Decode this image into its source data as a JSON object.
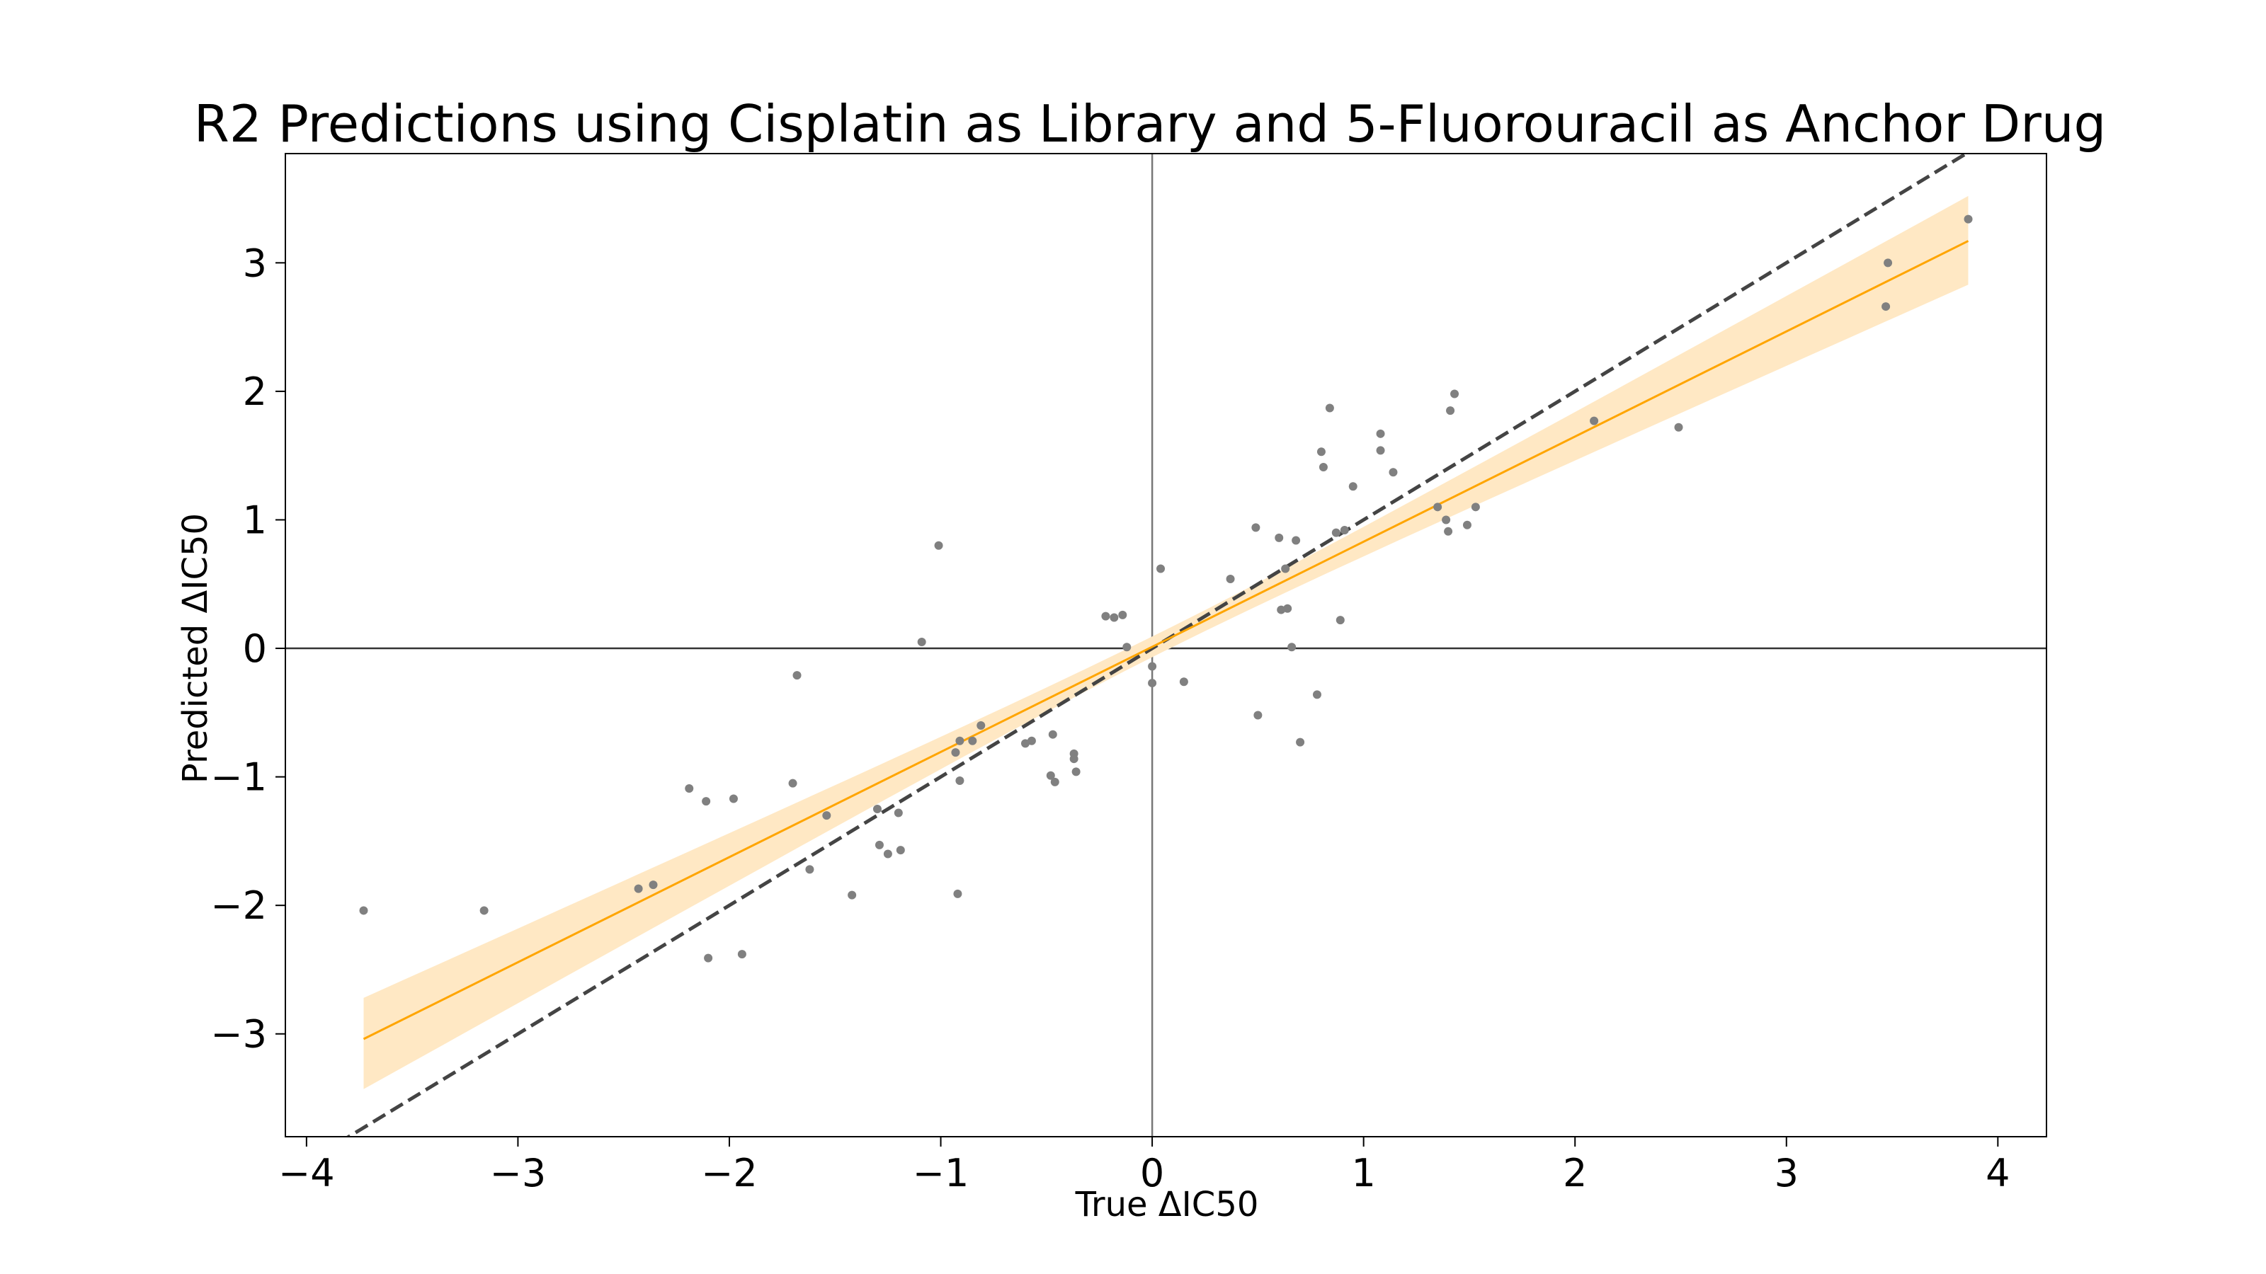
{
  "chart_data": {
    "type": "scatter",
    "title": "R2 Predictions using Cisplatin as Library and 5-Fluorouracil as Anchor Drug",
    "xlabel": "True ΔIC50",
    "ylabel": "Predicted ΔIC50",
    "xlim": [
      -4.1,
      4.23
    ],
    "ylim": [
      -3.8,
      3.85
    ],
    "xticks": [
      -4,
      -3,
      -2,
      -1,
      0,
      1,
      2,
      3,
      4
    ],
    "yticks": [
      -3,
      -2,
      -1,
      0,
      1,
      2,
      3
    ],
    "xtick_labels": [
      "−4",
      "−3",
      "−2",
      "−1",
      "0",
      "1",
      "2",
      "3",
      "4"
    ],
    "ytick_labels": [
      "−3",
      "−2",
      "−1",
      "0",
      "1",
      "2",
      "3"
    ],
    "grid": false,
    "reference_lines": {
      "horizontal_at": 0,
      "vertical_at": 0,
      "identity_dashed": true
    },
    "regression": {
      "x_range": [
        -3.73,
        3.86
      ],
      "y_at_ends": [
        -3.04,
        3.17
      ],
      "ci_lower_at_ends": [
        -3.43,
        2.83
      ],
      "ci_upper_at_ends": [
        -2.72,
        3.52
      ],
      "ci_near_center": 0.08,
      "color": "#ffa500",
      "ci_color": "#ffe8c4"
    },
    "colors": {
      "points": "#808080",
      "identity": "#444444",
      "zero_lines": "#000000"
    },
    "points": [
      {
        "x": -3.73,
        "y": -2.04
      },
      {
        "x": -3.16,
        "y": -2.04
      },
      {
        "x": -2.43,
        "y": -1.87
      },
      {
        "x": -2.36,
        "y": -1.84
      },
      {
        "x": -2.19,
        "y": -1.09
      },
      {
        "x": -2.11,
        "y": -1.19
      },
      {
        "x": -2.1,
        "y": -2.41
      },
      {
        "x": -1.98,
        "y": -1.17
      },
      {
        "x": -1.94,
        "y": -2.38
      },
      {
        "x": -1.7,
        "y": -1.05
      },
      {
        "x": -1.68,
        "y": -0.21
      },
      {
        "x": -1.62,
        "y": -1.72
      },
      {
        "x": -1.54,
        "y": -1.3
      },
      {
        "x": -1.42,
        "y": -1.92
      },
      {
        "x": -1.3,
        "y": -1.25
      },
      {
        "x": -1.29,
        "y": -1.53
      },
      {
        "x": -1.25,
        "y": -1.6
      },
      {
        "x": -1.2,
        "y": -1.28
      },
      {
        "x": -1.19,
        "y": -1.57
      },
      {
        "x": -1.09,
        "y": 0.05
      },
      {
        "x": -1.01,
        "y": 0.8
      },
      {
        "x": -0.92,
        "y": -1.91
      },
      {
        "x": -0.93,
        "y": -0.81
      },
      {
        "x": -0.91,
        "y": -0.72
      },
      {
        "x": -0.91,
        "y": -1.03
      },
      {
        "x": -0.85,
        "y": -0.72
      },
      {
        "x": -0.81,
        "y": -0.6
      },
      {
        "x": -0.6,
        "y": -0.74
      },
      {
        "x": -0.57,
        "y": -0.72
      },
      {
        "x": -0.48,
        "y": -0.99
      },
      {
        "x": -0.47,
        "y": -0.67
      },
      {
        "x": -0.46,
        "y": -1.04
      },
      {
        "x": -0.37,
        "y": -0.82
      },
      {
        "x": -0.37,
        "y": -0.86
      },
      {
        "x": -0.36,
        "y": -0.96
      },
      {
        "x": -0.22,
        "y": 0.25
      },
      {
        "x": -0.18,
        "y": 0.24
      },
      {
        "x": -0.14,
        "y": 0.26
      },
      {
        "x": -0.12,
        "y": 0.01
      },
      {
        "x": 0.0,
        "y": -0.14
      },
      {
        "x": 0.0,
        "y": -0.27
      },
      {
        "x": 0.04,
        "y": 0.62
      },
      {
        "x": 0.15,
        "y": -0.26
      },
      {
        "x": 0.37,
        "y": 0.54
      },
      {
        "x": 0.49,
        "y": 0.94
      },
      {
        "x": 0.5,
        "y": -0.52
      },
      {
        "x": 0.6,
        "y": 0.86
      },
      {
        "x": 0.61,
        "y": 0.3
      },
      {
        "x": 0.63,
        "y": 0.62
      },
      {
        "x": 0.64,
        "y": 0.31
      },
      {
        "x": 0.66,
        "y": 0.01
      },
      {
        "x": 0.68,
        "y": 0.84
      },
      {
        "x": 0.7,
        "y": -0.73
      },
      {
        "x": 0.78,
        "y": -0.36
      },
      {
        "x": 0.8,
        "y": 1.53
      },
      {
        "x": 0.81,
        "y": 1.41
      },
      {
        "x": 0.84,
        "y": 1.87
      },
      {
        "x": 0.87,
        "y": 0.9
      },
      {
        "x": 0.89,
        "y": 0.22
      },
      {
        "x": 0.91,
        "y": 0.92
      },
      {
        "x": 0.95,
        "y": 1.26
      },
      {
        "x": 1.08,
        "y": 1.67
      },
      {
        "x": 1.08,
        "y": 1.54
      },
      {
        "x": 1.14,
        "y": 1.37
      },
      {
        "x": 1.35,
        "y": 1.1
      },
      {
        "x": 1.39,
        "y": 1.0
      },
      {
        "x": 1.4,
        "y": 0.91
      },
      {
        "x": 1.41,
        "y": 1.85
      },
      {
        "x": 1.43,
        "y": 1.98
      },
      {
        "x": 1.49,
        "y": 0.96
      },
      {
        "x": 1.53,
        "y": 1.1
      },
      {
        "x": 2.09,
        "y": 1.77
      },
      {
        "x": 2.49,
        "y": 1.72
      },
      {
        "x": 3.47,
        "y": 2.66
      },
      {
        "x": 3.48,
        "y": 3.0
      },
      {
        "x": 3.86,
        "y": 3.34
      }
    ]
  }
}
